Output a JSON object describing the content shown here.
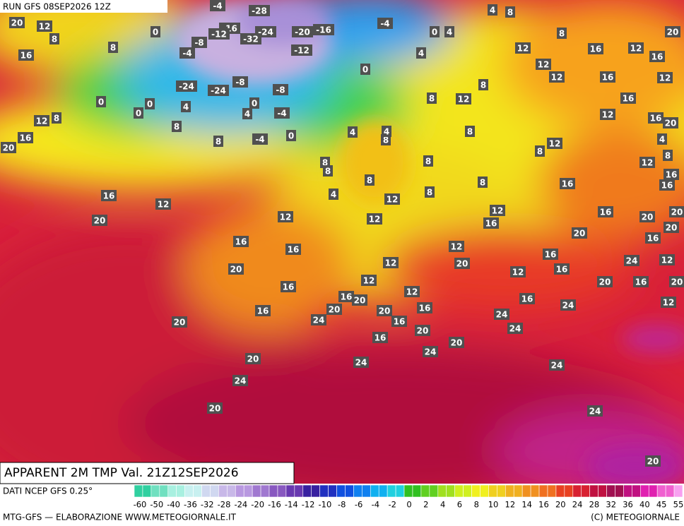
{
  "header": {
    "run": "RUN GFS 08SEP2026 12Z",
    "title": "APPARENT 2M TMP Val. 21Z12SEP2026"
  },
  "footer": {
    "source": "DATI NCEP GFS 0.25°",
    "credit": "MTG-GFS — ELABORAZIONE WWW.METEOGIORNALE.IT",
    "copyright": "(C) METEOGIORNALE"
  },
  "scale": {
    "labels": [
      -60,
      -50,
      -40,
      -36,
      -32,
      -28,
      -24,
      -20,
      -16,
      -14,
      -12,
      -10,
      -8,
      -6,
      -4,
      -2,
      0,
      2,
      4,
      6,
      8,
      10,
      12,
      14,
      16,
      20,
      24,
      28,
      32,
      36,
      40,
      45,
      55
    ]
  },
  "map": {
    "labels": [
      20,
      12,
      16,
      8,
      8,
      0,
      -4,
      -28,
      -16,
      -12,
      -24,
      -32,
      -8,
      -4,
      -20,
      -16,
      -12,
      -4,
      0,
      4,
      0,
      4,
      4,
      8,
      8,
      12,
      16,
      12,
      12,
      16,
      12,
      20,
      12,
      16,
      16,
      12,
      12,
      8,
      8,
      8,
      12,
      8,
      8,
      8,
      8,
      8,
      4,
      4,
      8,
      8,
      4,
      8,
      12,
      12,
      12,
      16,
      16,
      20,
      16,
      16,
      20,
      20,
      16,
      12,
      16,
      20,
      12,
      8,
      0,
      0,
      0,
      4,
      8,
      8,
      4,
      0,
      -8,
      -4,
      0,
      -4,
      -24,
      -24,
      -8,
      12,
      12,
      16,
      20,
      20,
      24,
      20,
      12,
      16,
      16,
      20,
      16,
      24,
      20,
      24,
      20,
      24,
      20,
      12,
      20,
      16,
      12,
      16,
      20,
      16,
      20,
      16,
      20,
      12,
      20,
      12,
      16,
      16,
      20,
      24,
      16,
      20,
      12,
      16,
      24,
      24,
      24,
      24,
      24,
      20,
      16,
      16,
      12,
      4,
      8,
      20,
      16
    ]
  }
}
